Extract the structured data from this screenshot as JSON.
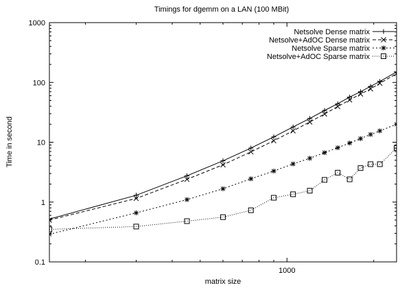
{
  "chart_data": {
    "type": "line",
    "title": "Timings for dgemm on a LAN (100 MBit)",
    "xlabel": "matrix size",
    "ylabel": "Time in second",
    "x_scale": "log",
    "y_scale": "log",
    "xlim": [
      150,
      2400
    ],
    "ylim": [
      0.1,
      1000
    ],
    "x_ticks": [
      {
        "value": 1000,
        "label": "1000"
      }
    ],
    "y_ticks": [
      {
        "value": 0.1,
        "label": "0.1"
      },
      {
        "value": 1,
        "label": "1"
      },
      {
        "value": 10,
        "label": "10"
      },
      {
        "value": 100,
        "label": "100"
      },
      {
        "value": 1000,
        "label": "1000"
      }
    ],
    "grid": false,
    "legend_position": "top-right",
    "series": [
      {
        "name": "Netsolve Dense matrix",
        "line": "solid",
        "marker": "plus",
        "points": [
          [
            150,
            0.52
          ],
          [
            300,
            1.3
          ],
          [
            450,
            2.75
          ],
          [
            600,
            4.9
          ],
          [
            750,
            8.0
          ],
          [
            900,
            12.3
          ],
          [
            1050,
            18.0
          ],
          [
            1200,
            25.0
          ],
          [
            1350,
            34.0
          ],
          [
            1500,
            44.0
          ],
          [
            1650,
            57.0
          ],
          [
            1800,
            70.0
          ],
          [
            1950,
            86.0
          ],
          [
            2100,
            104.0
          ],
          [
            2400,
            150.0
          ]
        ]
      },
      {
        "name": "Netsolve+AdOC Dense matrix",
        "line": "dashed",
        "marker": "cross",
        "points": [
          [
            150,
            0.5
          ],
          [
            300,
            1.15
          ],
          [
            450,
            2.4
          ],
          [
            600,
            4.2
          ],
          [
            750,
            6.9
          ],
          [
            900,
            10.6
          ],
          [
            1050,
            15.5
          ],
          [
            1200,
            21.8
          ],
          [
            1350,
            29.7
          ],
          [
            1500,
            39.5
          ],
          [
            1650,
            51.0
          ],
          [
            1800,
            64.0
          ],
          [
            1950,
            78.0
          ],
          [
            2100,
            97.0
          ],
          [
            2400,
            140.0
          ]
        ]
      },
      {
        "name": "Netsolve Sparse matrix",
        "line": "dotted",
        "marker": "star",
        "points": [
          [
            150,
            0.29
          ],
          [
            300,
            0.66
          ],
          [
            450,
            1.1
          ],
          [
            600,
            1.67
          ],
          [
            750,
            2.45
          ],
          [
            900,
            3.3
          ],
          [
            1050,
            4.35
          ],
          [
            1200,
            5.4
          ],
          [
            1350,
            6.7
          ],
          [
            1500,
            8.1
          ],
          [
            1650,
            9.7
          ],
          [
            1800,
            11.5
          ],
          [
            1950,
            13.5
          ],
          [
            2100,
            15.5
          ],
          [
            2400,
            20.0
          ]
        ]
      },
      {
        "name": "Netsolve+AdOC Sparse matrix",
        "line": "fine-dotted",
        "marker": "square",
        "points": [
          [
            150,
            0.35
          ],
          [
            300,
            0.39
          ],
          [
            450,
            0.48
          ],
          [
            600,
            0.56
          ],
          [
            750,
            0.73
          ],
          [
            900,
            1.18
          ],
          [
            1050,
            1.35
          ],
          [
            1200,
            1.55
          ],
          [
            1350,
            2.35
          ],
          [
            1500,
            3.1
          ],
          [
            1650,
            2.4
          ],
          [
            1800,
            3.7
          ],
          [
            1950,
            4.3
          ],
          [
            2100,
            4.3
          ],
          [
            2400,
            8.0
          ]
        ]
      }
    ]
  }
}
